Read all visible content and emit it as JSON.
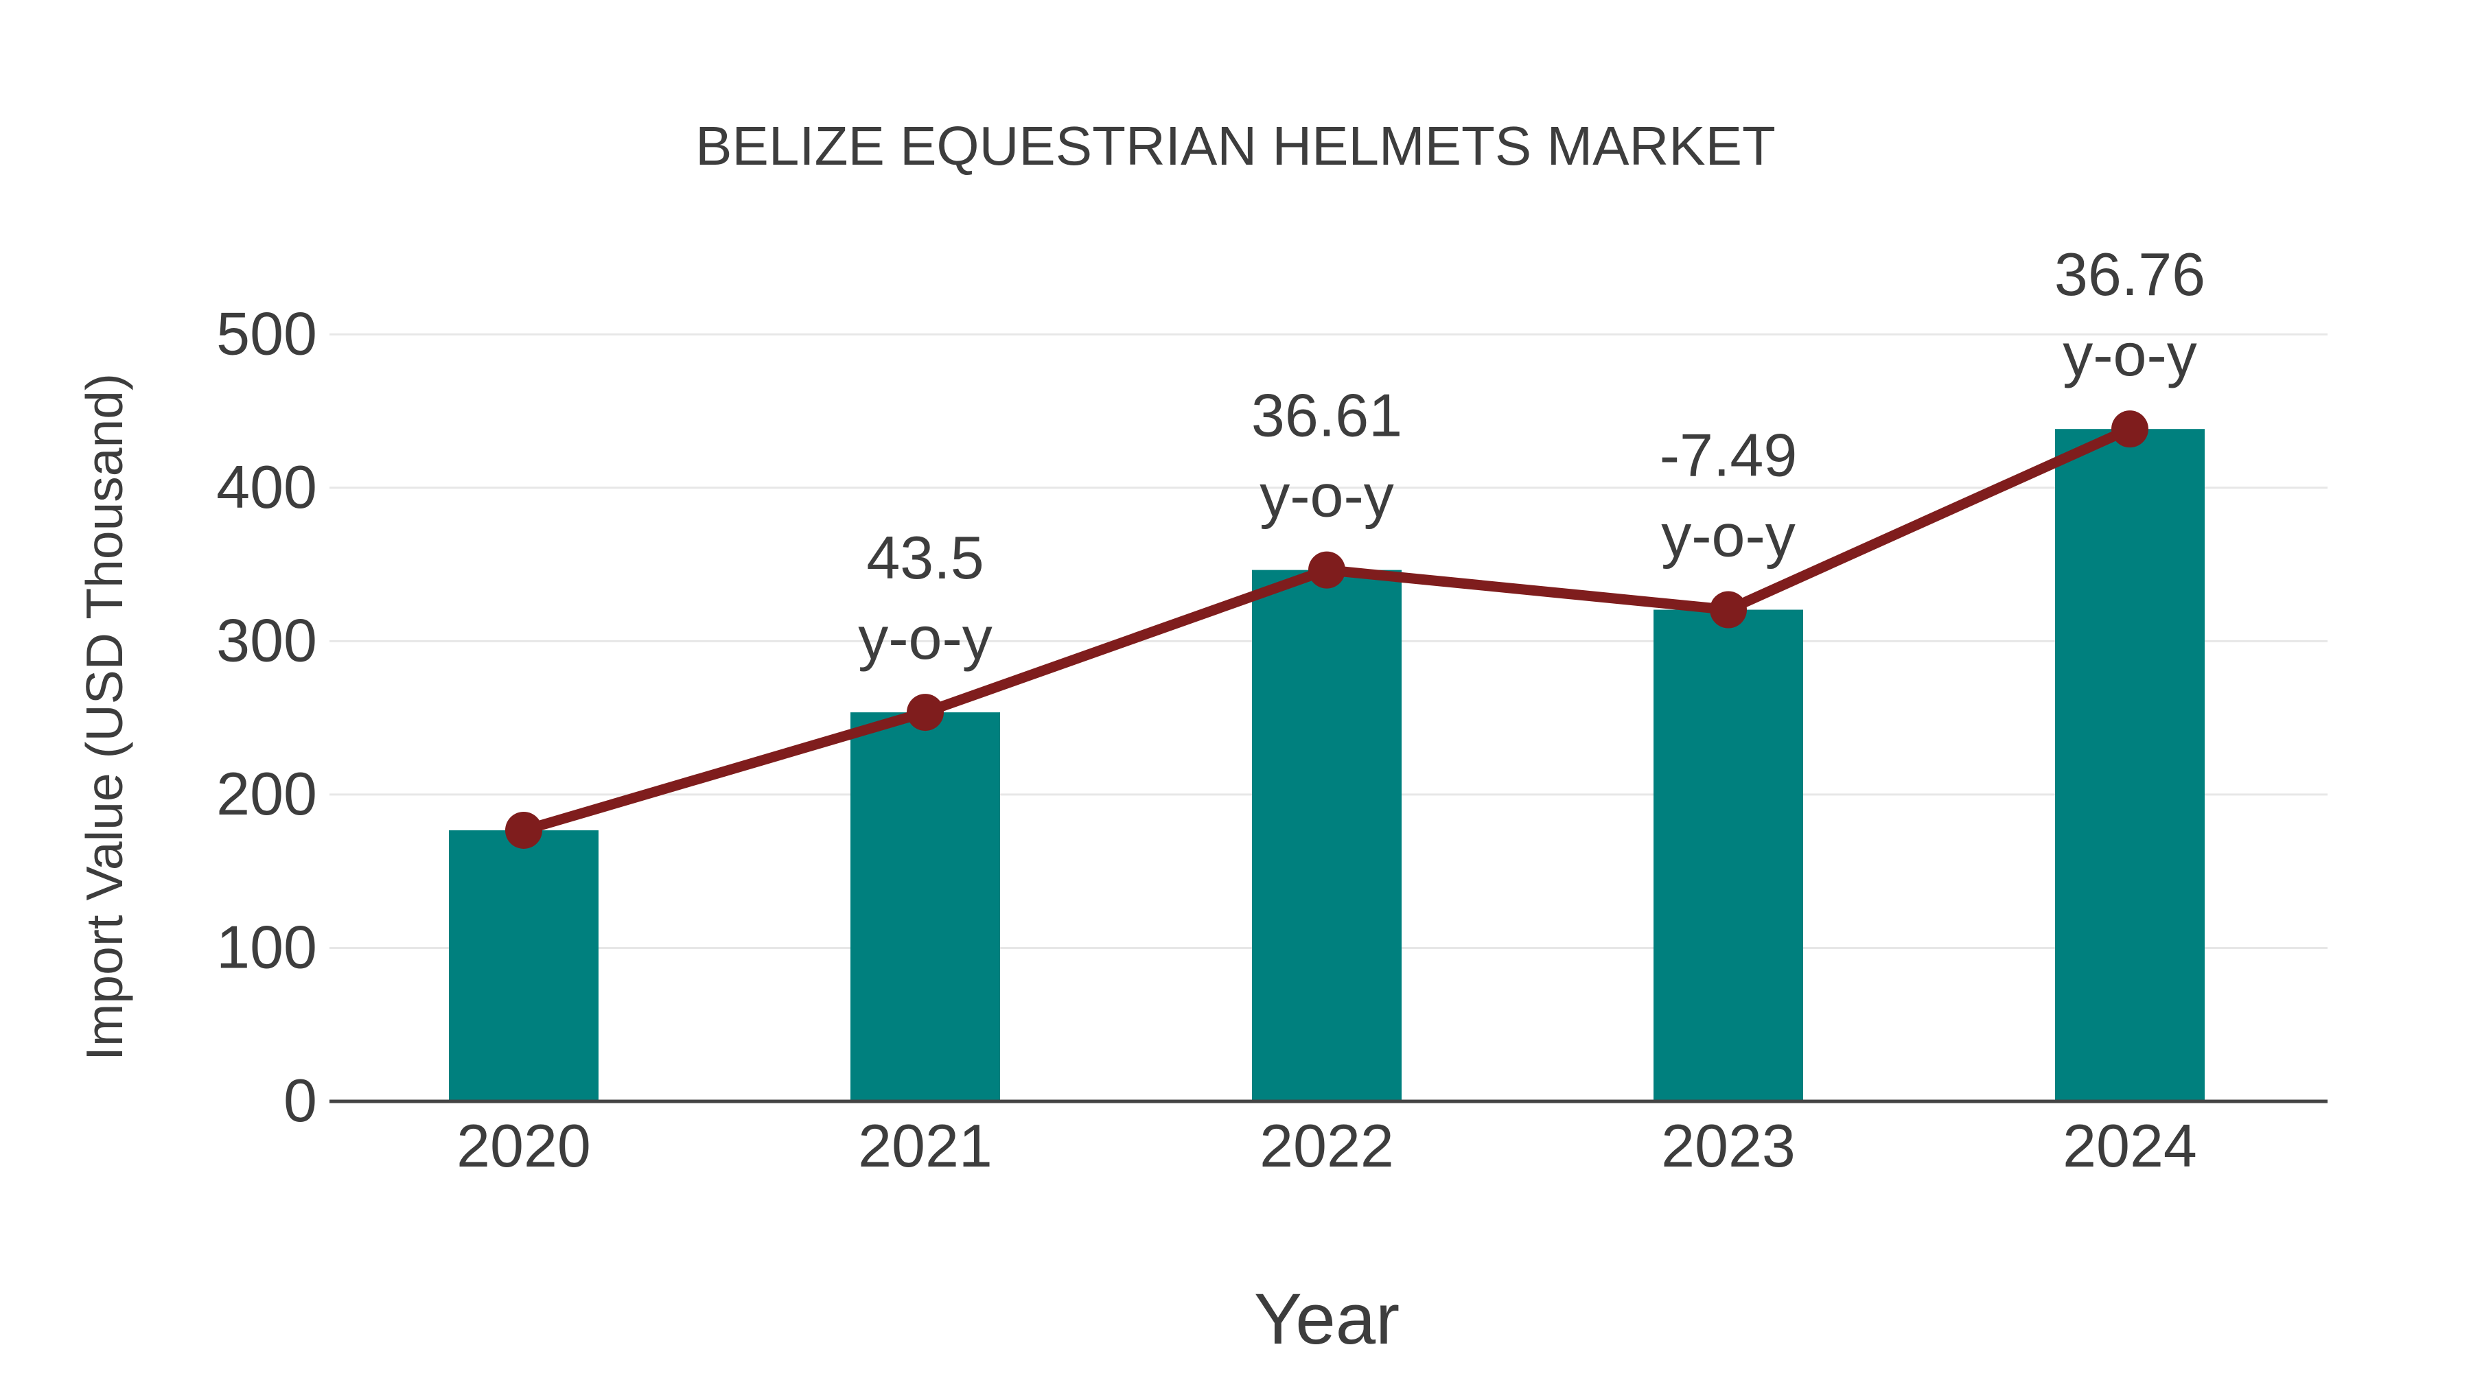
{
  "chart_data": {
    "type": "bar",
    "title": "BELIZE EQUESTRIAN HELMETS MARKET",
    "xlabel": "Year",
    "ylabel": "Import Value (USD Thousand)",
    "categories": [
      "2020",
      "2021",
      "2022",
      "2023",
      "2024"
    ],
    "series": [
      {
        "name": "Import Value (USD Thousand)",
        "type": "bar",
        "color": "#00807e",
        "values": [
          176.7,
          253.6,
          346.4,
          320.5,
          438.3
        ]
      },
      {
        "name": "y-o-y change (%)",
        "type": "line",
        "color": "#7f1d1d",
        "values": [
          176.7,
          253.6,
          346.4,
          320.5,
          438.3
        ],
        "pct_change": [
          null,
          43.5,
          36.61,
          -7.49,
          36.76
        ]
      }
    ],
    "annotations": [
      {
        "category_index": 1,
        "value": "43.5",
        "suffix": "y-o-y"
      },
      {
        "category_index": 2,
        "value": "36.61",
        "suffix": "y-o-y"
      },
      {
        "category_index": 3,
        "value": "-7.49",
        "suffix": "y-o-y"
      },
      {
        "category_index": 4,
        "value": "36.76",
        "suffix": "y-o-y"
      }
    ],
    "ylim": [
      0,
      500
    ],
    "yticks": [
      0,
      100,
      200,
      300,
      400,
      500
    ],
    "grid": true,
    "legend": "none"
  }
}
